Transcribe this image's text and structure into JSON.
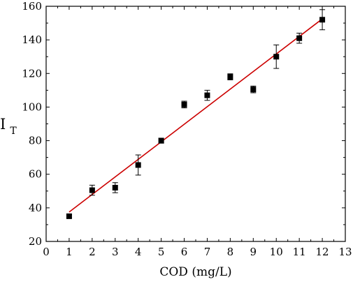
{
  "chart_data": {
    "type": "scatter",
    "title": "",
    "xlabel": "COD (mg/L)",
    "ylabel_main": "I",
    "ylabel_sub": "T",
    "xlim": [
      0,
      13
    ],
    "ylim": [
      20,
      160
    ],
    "xticks": [
      "0",
      "1",
      "2",
      "3",
      "4",
      "5",
      "6",
      "7",
      "8",
      "9",
      "10",
      "11",
      "12",
      "13"
    ],
    "yticks": [
      "20",
      "40",
      "60",
      "80",
      "100",
      "120",
      "140",
      "160"
    ],
    "grid": false,
    "legend": "none",
    "marker_color": "#000000",
    "fit_color": "#cc0000",
    "points": [
      {
        "x": 1,
        "y": 35,
        "err": 0.8
      },
      {
        "x": 2,
        "y": 50.5,
        "err": 3
      },
      {
        "x": 3,
        "y": 52,
        "err": 3
      },
      {
        "x": 4,
        "y": 65.5,
        "err": 6
      },
      {
        "x": 5,
        "y": 80,
        "err": 1.5
      },
      {
        "x": 6,
        "y": 101.5,
        "err": 2
      },
      {
        "x": 7,
        "y": 107,
        "err": 3
      },
      {
        "x": 8,
        "y": 118,
        "err": 1.8
      },
      {
        "x": 9,
        "y": 110.5,
        "err": 2
      },
      {
        "x": 10,
        "y": 130,
        "err": 7
      },
      {
        "x": 11,
        "y": 141,
        "err": 3
      },
      {
        "x": 12,
        "y": 152,
        "err": 6
      }
    ],
    "fit_line": {
      "x": [
        1,
        12
      ],
      "y": [
        37.5,
        152.5
      ]
    }
  }
}
